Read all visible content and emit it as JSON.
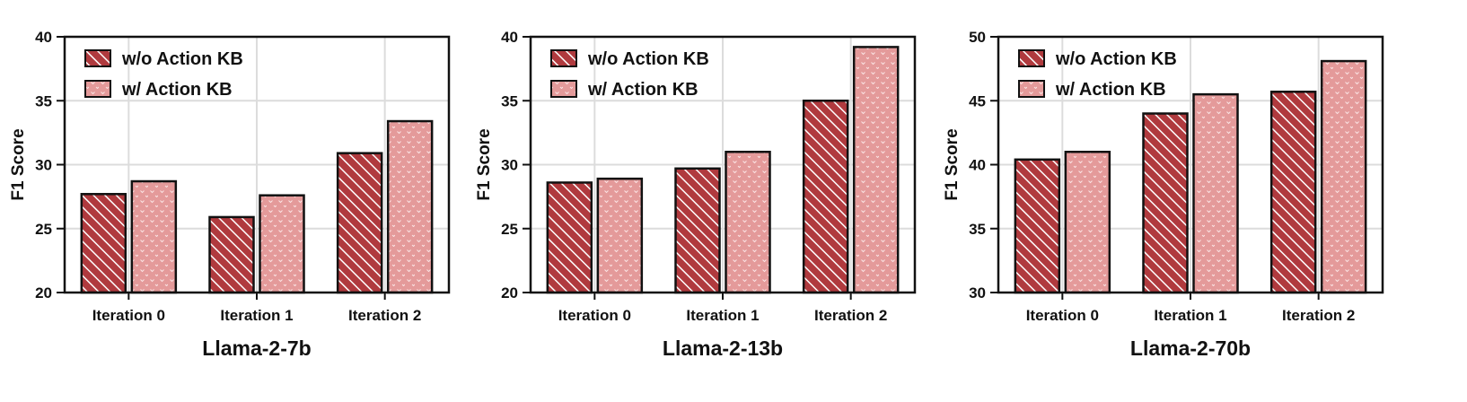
{
  "chart_data": [
    {
      "type": "bar",
      "title": "Llama-2-7b",
      "xlabel": "",
      "ylabel": "F1 Score",
      "ylim": [
        20,
        40
      ],
      "yticks": [
        20,
        25,
        30,
        35,
        40
      ],
      "grid": true,
      "legend_position": "top-left",
      "categories": [
        "Iteration 0",
        "Iteration 1",
        "Iteration 2"
      ],
      "series": [
        {
          "name": "w/o Action KB",
          "values": [
            27.7,
            25.9,
            30.9
          ]
        },
        {
          "name": "w/ Action KB",
          "values": [
            28.7,
            27.6,
            33.4
          ]
        }
      ]
    },
    {
      "type": "bar",
      "title": "Llama-2-13b",
      "xlabel": "",
      "ylabel": "F1 Score",
      "ylim": [
        20,
        40
      ],
      "yticks": [
        20,
        25,
        30,
        35,
        40
      ],
      "grid": true,
      "legend_position": "top-left",
      "categories": [
        "Iteration 0",
        "Iteration 1",
        "Iteration 2"
      ],
      "series": [
        {
          "name": "w/o Action KB",
          "values": [
            28.6,
            29.7,
            35.0
          ]
        },
        {
          "name": "w/ Action KB",
          "values": [
            28.9,
            31.0,
            39.2
          ]
        }
      ]
    },
    {
      "type": "bar",
      "title": "Llama-2-70b",
      "xlabel": "",
      "ylabel": "F1 Score",
      "ylim": [
        30,
        50
      ],
      "yticks": [
        30,
        35,
        40,
        45,
        50
      ],
      "grid": true,
      "legend_position": "top-left",
      "categories": [
        "Iteration 0",
        "Iteration 1",
        "Iteration 2"
      ],
      "series": [
        {
          "name": "w/o Action KB",
          "values": [
            40.4,
            44.0,
            45.7
          ]
        },
        {
          "name": "w/ Action KB",
          "values": [
            41.0,
            45.5,
            48.1
          ]
        }
      ]
    }
  ],
  "colors": {
    "hatch_bg": "#b03a3e",
    "hatch_line": "#ffffff",
    "dot_bg": "#e49a9a",
    "dot_fg": "#fbe4e4",
    "outline": "#111111",
    "grid": "#dcdcdc"
  }
}
